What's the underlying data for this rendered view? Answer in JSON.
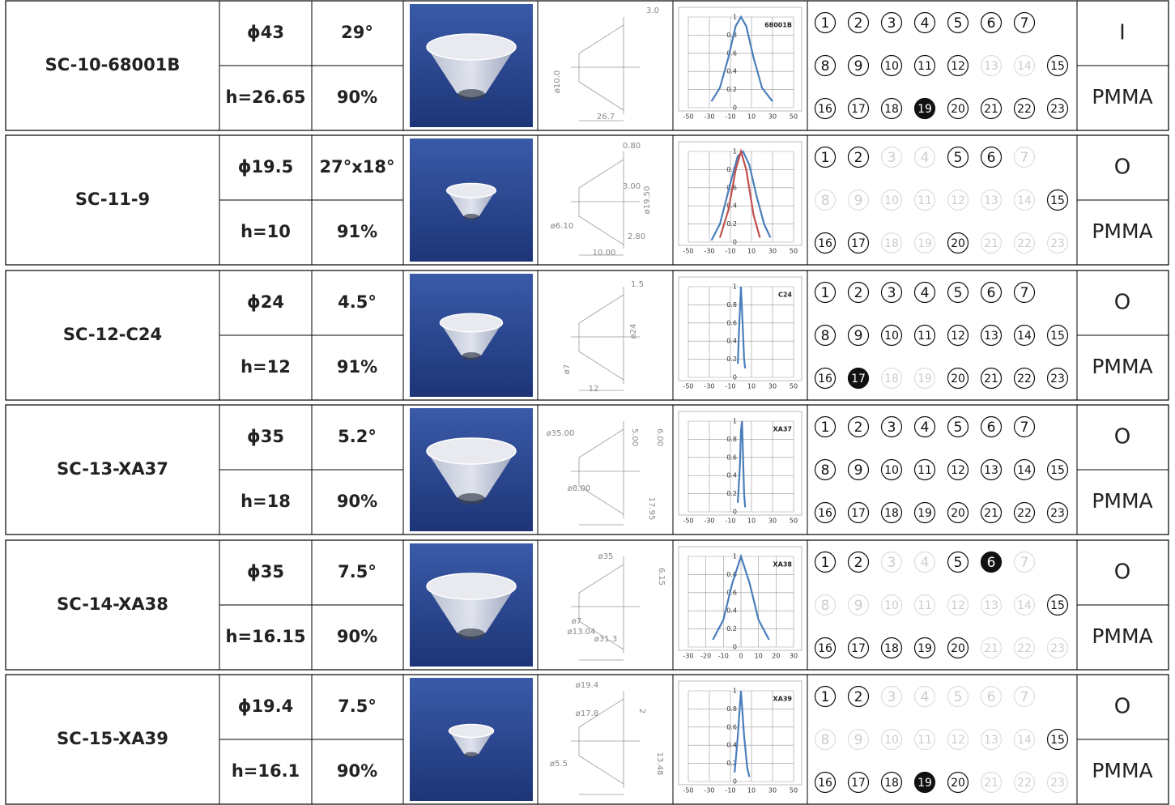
{
  "rows": [
    {
      "name": "SC-10-68001B",
      "diameter": "ϕ43",
      "angle": "29°",
      "height": "h=26.65",
      "efficiency": "90%",
      "type": "I",
      "material": "PMMA",
      "drawing": [
        "3.0",
        "ø10.0",
        "26.7"
      ],
      "chart": {
        "label": "68001B",
        "xlim": [
          -50,
          50
        ],
        "xticks": [
          -50,
          -30,
          -10,
          10,
          30,
          50
        ],
        "ylim": [
          0,
          1
        ],
        "yticks": [
          0,
          0.2,
          0.4,
          0.6,
          0.8,
          1
        ],
        "series": [
          {
            "color": "#4a7ebb",
            "x": [
              -28,
              -20,
              -12,
              -5,
              0,
              5,
              12,
              20,
              30
            ],
            "values": [
              0.07,
              0.22,
              0.55,
              0.9,
              1,
              0.9,
              0.55,
              0.22,
              0.07
            ]
          }
        ]
      },
      "options": [
        {
          "n": 1,
          "s": "on"
        },
        {
          "n": 2,
          "s": "on"
        },
        {
          "n": 3,
          "s": "on"
        },
        {
          "n": 4,
          "s": "on"
        },
        {
          "n": 5,
          "s": "on"
        },
        {
          "n": 6,
          "s": "on"
        },
        {
          "n": 7,
          "s": "on"
        },
        {
          "n": 8,
          "s": "on"
        },
        {
          "n": 9,
          "s": "on"
        },
        {
          "n": 10,
          "s": "on"
        },
        {
          "n": 11,
          "s": "on"
        },
        {
          "n": 12,
          "s": "on"
        },
        {
          "n": 13,
          "s": "off"
        },
        {
          "n": 14,
          "s": "off"
        },
        {
          "n": 15,
          "s": "on"
        },
        {
          "n": 16,
          "s": "on"
        },
        {
          "n": 17,
          "s": "on"
        },
        {
          "n": 18,
          "s": "on"
        },
        {
          "n": 19,
          "s": "mark"
        },
        {
          "n": 20,
          "s": "on"
        },
        {
          "n": 21,
          "s": "on"
        },
        {
          "n": 22,
          "s": "on"
        },
        {
          "n": 23,
          "s": "on"
        }
      ]
    },
    {
      "name": "SC-11-9",
      "diameter": "ϕ19.5",
      "angle": "27°x18°",
      "height": "h=10",
      "efficiency": "91%",
      "type": "O",
      "material": "PMMA",
      "drawing": [
        "0.80",
        "3.00",
        "ø19.50",
        "ø6.10",
        "2.80",
        "10.00"
      ],
      "chart": {
        "xlim": [
          -50,
          50
        ],
        "xticks": [
          -50,
          -30,
          -10,
          10,
          30,
          50
        ],
        "ylim": [
          0,
          1
        ],
        "yticks": [
          0,
          0.2,
          0.4,
          0.6,
          0.8,
          1
        ],
        "series": [
          {
            "color": "#4a7ebb",
            "x": [
              -28,
              -20,
              -10,
              -3,
              2,
              8,
              15,
              22,
              28
            ],
            "values": [
              0.02,
              0.2,
              0.65,
              0.95,
              1,
              0.85,
              0.5,
              0.2,
              0.05
            ]
          },
          {
            "color": "#c0504d",
            "x": [
              -20,
              -12,
              -5,
              0,
              5,
              12,
              18
            ],
            "values": [
              0.05,
              0.35,
              0.8,
              1,
              0.8,
              0.3,
              0.05
            ]
          }
        ]
      },
      "options": [
        {
          "n": 1,
          "s": "on"
        },
        {
          "n": 2,
          "s": "on"
        },
        {
          "n": 3,
          "s": "off"
        },
        {
          "n": 4,
          "s": "off"
        },
        {
          "n": 5,
          "s": "on"
        },
        {
          "n": 6,
          "s": "on"
        },
        {
          "n": 7,
          "s": "off"
        },
        {
          "n": 8,
          "s": "off"
        },
        {
          "n": 9,
          "s": "off"
        },
        {
          "n": 10,
          "s": "off"
        },
        {
          "n": 11,
          "s": "off"
        },
        {
          "n": 12,
          "s": "off"
        },
        {
          "n": 13,
          "s": "off"
        },
        {
          "n": 14,
          "s": "off"
        },
        {
          "n": 15,
          "s": "on"
        },
        {
          "n": 16,
          "s": "on"
        },
        {
          "n": 17,
          "s": "on"
        },
        {
          "n": 18,
          "s": "off"
        },
        {
          "n": 19,
          "s": "off"
        },
        {
          "n": 20,
          "s": "on"
        },
        {
          "n": 21,
          "s": "off"
        },
        {
          "n": 22,
          "s": "off"
        },
        {
          "n": 23,
          "s": "off"
        }
      ]
    },
    {
      "name": "SC-12-C24",
      "diameter": "ϕ24",
      "angle": "4.5°",
      "height": "h=12",
      "efficiency": "91%",
      "type": "O",
      "material": "PMMA",
      "drawing": [
        "1.5",
        "ø24",
        "ø7",
        "12"
      ],
      "chart": {
        "label": "C24",
        "xlim": [
          -50,
          50
        ],
        "xticks": [
          -50,
          -30,
          -10,
          10,
          30,
          50
        ],
        "ylim": [
          0,
          1
        ],
        "yticks": [
          0,
          0.2,
          0.4,
          0.6,
          0.8,
          1
        ],
        "series": [
          {
            "color": "#4a7ebb",
            "x": [
              -3,
              -1.5,
              0,
              1.5,
              3,
              4
            ],
            "values": [
              0.15,
              0.6,
              1,
              0.6,
              0.2,
              0.1
            ]
          }
        ]
      },
      "options": [
        {
          "n": 1,
          "s": "on"
        },
        {
          "n": 2,
          "s": "on"
        },
        {
          "n": 3,
          "s": "on"
        },
        {
          "n": 4,
          "s": "on"
        },
        {
          "n": 5,
          "s": "on"
        },
        {
          "n": 6,
          "s": "on"
        },
        {
          "n": 7,
          "s": "on"
        },
        {
          "n": 8,
          "s": "on"
        },
        {
          "n": 9,
          "s": "on"
        },
        {
          "n": 10,
          "s": "on"
        },
        {
          "n": 11,
          "s": "on"
        },
        {
          "n": 12,
          "s": "on"
        },
        {
          "n": 13,
          "s": "on"
        },
        {
          "n": 14,
          "s": "on"
        },
        {
          "n": 15,
          "s": "on"
        },
        {
          "n": 16,
          "s": "on"
        },
        {
          "n": 17,
          "s": "mark"
        },
        {
          "n": 18,
          "s": "off"
        },
        {
          "n": 19,
          "s": "off"
        },
        {
          "n": 20,
          "s": "on"
        },
        {
          "n": 21,
          "s": "on"
        },
        {
          "n": 22,
          "s": "on"
        },
        {
          "n": 23,
          "s": "on"
        }
      ]
    },
    {
      "name": "SC-13-XA37",
      "diameter": "ϕ35",
      "angle": "5.2°",
      "height": "h=18",
      "efficiency": "90%",
      "type": "O",
      "material": "PMMA",
      "drawing": [
        "ø35.00",
        "5.00",
        "6.00",
        "ø8.00",
        "17.95"
      ],
      "chart": {
        "label": "XA37",
        "xlim": [
          -50,
          50
        ],
        "xticks": [
          -50,
          -30,
          -10,
          10,
          30,
          50
        ],
        "ylim": [
          0,
          1
        ],
        "yticks": [
          0,
          0.2,
          0.4,
          0.6,
          0.8,
          1
        ],
        "series": [
          {
            "color": "#4a7ebb",
            "x": [
              -3,
              -1,
              0,
              1,
              2,
              3,
              4
            ],
            "values": [
              0.1,
              0.5,
              0.9,
              1,
              0.6,
              0.2,
              0.05
            ]
          }
        ]
      },
      "options": [
        {
          "n": 1,
          "s": "on"
        },
        {
          "n": 2,
          "s": "on"
        },
        {
          "n": 3,
          "s": "on"
        },
        {
          "n": 4,
          "s": "on"
        },
        {
          "n": 5,
          "s": "on"
        },
        {
          "n": 6,
          "s": "on"
        },
        {
          "n": 7,
          "s": "on"
        },
        {
          "n": 8,
          "s": "on"
        },
        {
          "n": 9,
          "s": "on"
        },
        {
          "n": 10,
          "s": "on"
        },
        {
          "n": 11,
          "s": "on"
        },
        {
          "n": 12,
          "s": "on"
        },
        {
          "n": 13,
          "s": "on"
        },
        {
          "n": 14,
          "s": "on"
        },
        {
          "n": 15,
          "s": "on"
        },
        {
          "n": 16,
          "s": "on"
        },
        {
          "n": 17,
          "s": "on"
        },
        {
          "n": 18,
          "s": "on"
        },
        {
          "n": 19,
          "s": "on"
        },
        {
          "n": 20,
          "s": "on"
        },
        {
          "n": 21,
          "s": "on"
        },
        {
          "n": 22,
          "s": "on"
        },
        {
          "n": 23,
          "s": "on"
        }
      ]
    },
    {
      "name": "SC-14-XA38",
      "diameter": "ϕ35",
      "angle": "7.5°",
      "height": "h=16.15",
      "efficiency": "90%",
      "type": "O",
      "material": "PMMA",
      "drawing": [
        "ø35",
        "6.15",
        "ø7",
        "ø13.04",
        "ø31.3"
      ],
      "chart": {
        "label": "XA38",
        "xlim": [
          -30,
          30
        ],
        "xticks": [
          -30,
          -20,
          -10,
          0,
          10,
          20,
          30
        ],
        "ylim": [
          0,
          1
        ],
        "yticks": [
          0,
          0.2,
          0.4,
          0.6,
          0.8,
          1
        ],
        "series": [
          {
            "color": "#4a7ebb",
            "x": [
              -16,
              -10,
              -5,
              0,
              5,
              10,
              16
            ],
            "values": [
              0.08,
              0.3,
              0.7,
              1,
              0.7,
              0.3,
              0.08
            ]
          }
        ]
      },
      "options": [
        {
          "n": 1,
          "s": "on"
        },
        {
          "n": 2,
          "s": "on"
        },
        {
          "n": 3,
          "s": "off"
        },
        {
          "n": 4,
          "s": "off"
        },
        {
          "n": 5,
          "s": "on"
        },
        {
          "n": 6,
          "s": "mark"
        },
        {
          "n": 7,
          "s": "off"
        },
        {
          "n": 8,
          "s": "off"
        },
        {
          "n": 9,
          "s": "off"
        },
        {
          "n": 10,
          "s": "off"
        },
        {
          "n": 11,
          "s": "off"
        },
        {
          "n": 12,
          "s": "off"
        },
        {
          "n": 13,
          "s": "off"
        },
        {
          "n": 14,
          "s": "off"
        },
        {
          "n": 15,
          "s": "on"
        },
        {
          "n": 16,
          "s": "on"
        },
        {
          "n": 17,
          "s": "on"
        },
        {
          "n": 18,
          "s": "on"
        },
        {
          "n": 19,
          "s": "on"
        },
        {
          "n": 20,
          "s": "on"
        },
        {
          "n": 21,
          "s": "off"
        },
        {
          "n": 22,
          "s": "off"
        },
        {
          "n": 23,
          "s": "off"
        }
      ]
    },
    {
      "name": "SC-15-XA39",
      "diameter": "ϕ19.4",
      "angle": "7.5°",
      "height": "h=16.1",
      "efficiency": "90%",
      "type": "O",
      "material": "PMMA",
      "drawing": [
        "ø19.4",
        "ø17.8",
        "2",
        "ø5.5",
        "13.48"
      ],
      "chart": {
        "label": "XA39",
        "xlim": [
          -50,
          50
        ],
        "xticks": [
          -50,
          -30,
          -10,
          10,
          30,
          50
        ],
        "ylim": [
          0,
          1
        ],
        "yticks": [
          0,
          0.2,
          0.4,
          0.6,
          0.8,
          1
        ],
        "series": [
          {
            "color": "#4a7ebb",
            "x": [
              -6,
              -3,
              0,
              3,
              6,
              8
            ],
            "values": [
              0.1,
              0.5,
              1,
              0.5,
              0.15,
              0.05
            ]
          }
        ]
      },
      "options": [
        {
          "n": 1,
          "s": "on"
        },
        {
          "n": 2,
          "s": "on"
        },
        {
          "n": 3,
          "s": "off"
        },
        {
          "n": 4,
          "s": "off"
        },
        {
          "n": 5,
          "s": "off"
        },
        {
          "n": 6,
          "s": "off"
        },
        {
          "n": 7,
          "s": "off"
        },
        {
          "n": 8,
          "s": "off"
        },
        {
          "n": 9,
          "s": "off"
        },
        {
          "n": 10,
          "s": "off"
        },
        {
          "n": 11,
          "s": "off"
        },
        {
          "n": 12,
          "s": "off"
        },
        {
          "n": 13,
          "s": "off"
        },
        {
          "n": 14,
          "s": "off"
        },
        {
          "n": 15,
          "s": "on"
        },
        {
          "n": 16,
          "s": "on"
        },
        {
          "n": 17,
          "s": "on"
        },
        {
          "n": 18,
          "s": "on"
        },
        {
          "n": 19,
          "s": "mark"
        },
        {
          "n": 20,
          "s": "on"
        },
        {
          "n": 21,
          "s": "off"
        },
        {
          "n": 22,
          "s": "off"
        },
        {
          "n": 23,
          "s": "off"
        }
      ]
    }
  ]
}
